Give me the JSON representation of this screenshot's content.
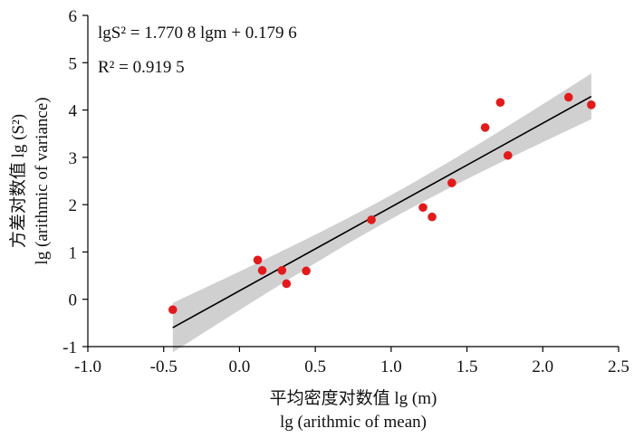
{
  "chart_data": {
    "type": "scatter",
    "xlabel_lines": [
      "平均密度对数值 lg (m)",
      "lg (arithmic of mean)"
    ],
    "ylabel_lines": [
      "方差对数值 lg (S²)",
      "lg (arithmic of variance)"
    ],
    "xlim": [
      -1.0,
      2.5
    ],
    "ylim": [
      -1,
      6
    ],
    "x_ticks": [
      "-1.0",
      "-0.5",
      "0.0",
      "0.5",
      "1.0",
      "1.5",
      "2.0",
      "2.5"
    ],
    "y_ticks": [
      "-1",
      "0",
      "1",
      "2",
      "3",
      "4",
      "5",
      "6"
    ],
    "grid": false,
    "point_color": "#e31a1c",
    "line_color": "#000000",
    "band_color": "#c8c8c8",
    "annotations": {
      "equation": "lgS² = 1.770 8 lgm + 0.179 6",
      "r2": "R² = 0.919 5"
    },
    "fit": {
      "slope": 1.7708,
      "intercept": 0.1796,
      "x_range": [
        -0.44,
        2.32
      ]
    },
    "points": [
      {
        "x": -0.44,
        "y": -0.22
      },
      {
        "x": 0.12,
        "y": 0.83
      },
      {
        "x": 0.15,
        "y": 0.61
      },
      {
        "x": 0.28,
        "y": 0.61
      },
      {
        "x": 0.31,
        "y": 0.33
      },
      {
        "x": 0.44,
        "y": 0.6
      },
      {
        "x": 0.87,
        "y": 1.68
      },
      {
        "x": 1.21,
        "y": 1.94
      },
      {
        "x": 1.27,
        "y": 1.74
      },
      {
        "x": 1.4,
        "y": 2.46
      },
      {
        "x": 1.62,
        "y": 3.63
      },
      {
        "x": 1.72,
        "y": 4.16
      },
      {
        "x": 1.77,
        "y": 3.04
      },
      {
        "x": 2.17,
        "y": 4.27
      },
      {
        "x": 2.32,
        "y": 4.11
      }
    ]
  }
}
